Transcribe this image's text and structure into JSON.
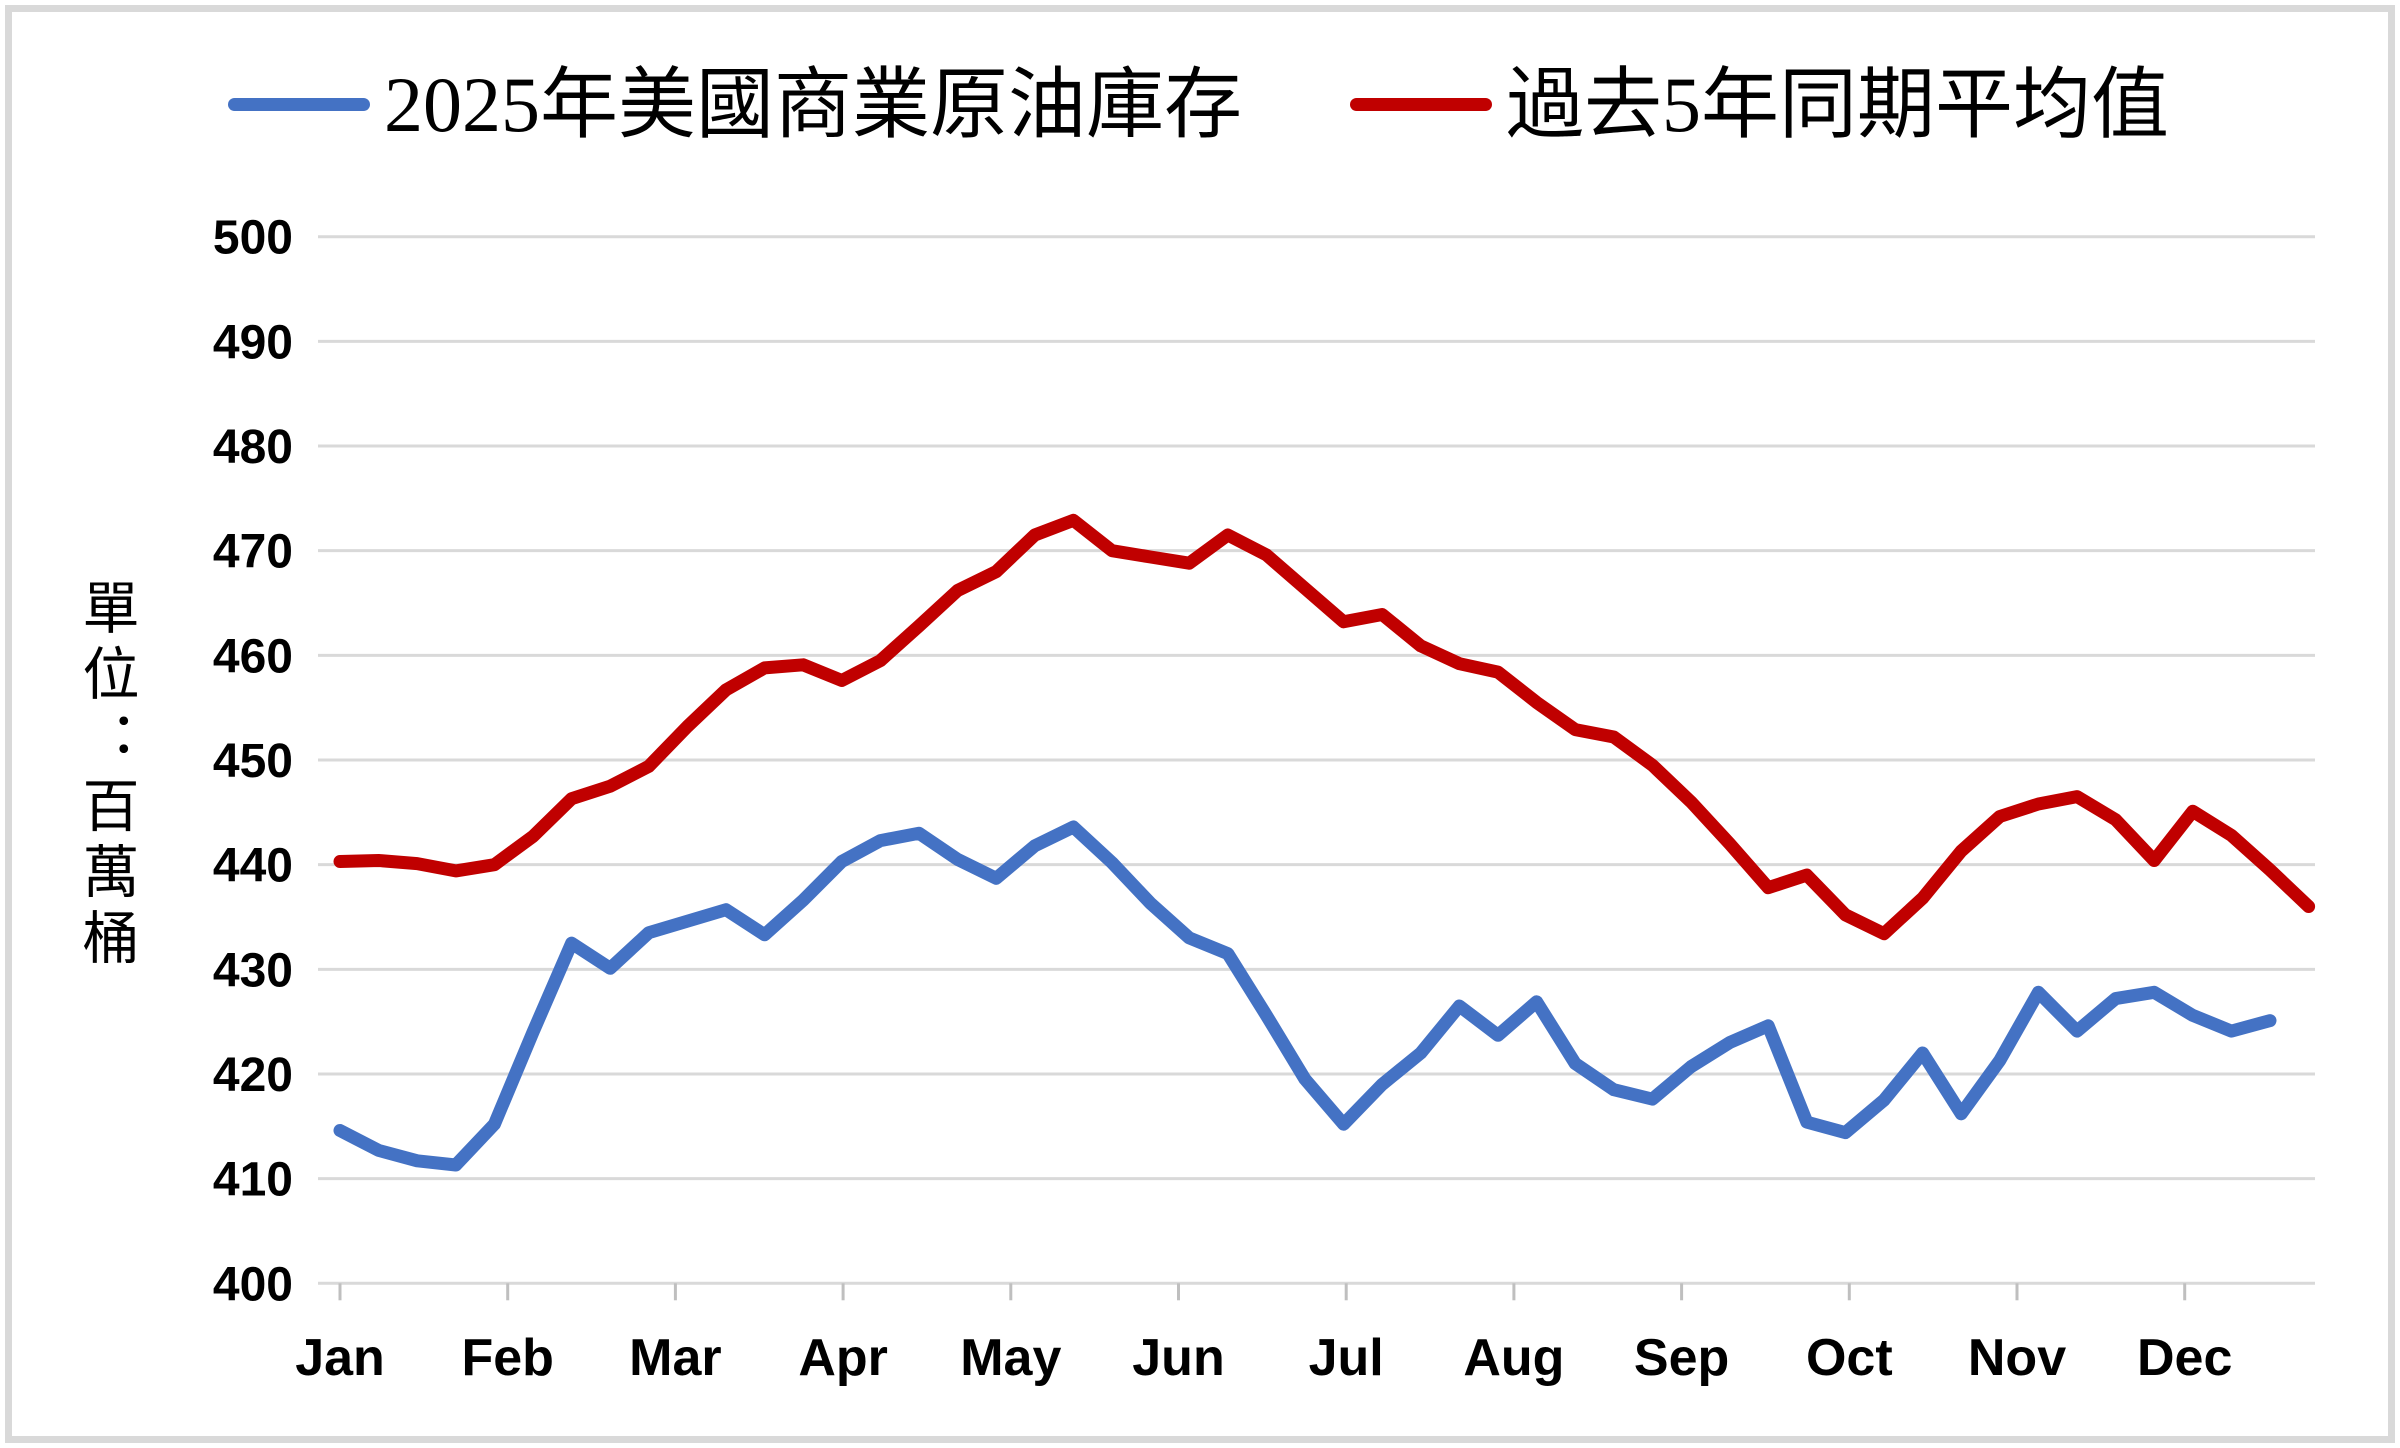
{
  "legend": {
    "items": [
      {
        "label": "2025年美國商業原油庫存",
        "color": "#4472C4"
      },
      {
        "label": "過去5年同期平均值",
        "color": "#C00000"
      }
    ]
  },
  "y_axis": {
    "unit_label": "單位：百萬桶",
    "tick_labels": [
      "500",
      "490",
      "480",
      "470",
      "460",
      "450",
      "440",
      "430",
      "420",
      "410",
      "400"
    ]
  },
  "x_axis": {
    "month_labels": [
      "Jan",
      "Feb",
      "Mar",
      "Apr",
      "May",
      "Jun",
      "Jul",
      "Aug",
      "Sep",
      "Oct",
      "Nov",
      "Dec"
    ]
  },
  "chart_data": {
    "type": "line",
    "title": "",
    "x_unit": "weekly data, January through December",
    "ylabel": "單位：百萬桶",
    "ylim": [
      400,
      500
    ],
    "y_tick_step": 10,
    "grid": true,
    "legend_position": "top",
    "x_tick_labels": [
      "Jan",
      "Feb",
      "Mar",
      "Apr",
      "May",
      "Jun",
      "Jul",
      "Aug",
      "Sep",
      "Oct",
      "Nov",
      "Dec"
    ],
    "series": [
      {
        "name": "2025年美國商業原油庫存",
        "color": "#4472C4",
        "values": [
          414.6,
          412.7,
          411.7,
          411.3,
          415.2,
          424.0,
          432.5,
          430.1,
          433.5,
          434.6,
          435.7,
          433.3,
          436.6,
          440.3,
          442.3,
          443.0,
          440.5,
          438.7,
          441.8,
          443.6,
          440.2,
          436.3,
          433.0,
          431.5,
          425.6,
          419.5,
          415.2,
          419.0,
          422.0,
          426.5,
          423.7,
          426.9,
          421.0,
          418.5,
          417.6,
          420.7,
          423.0,
          424.6,
          415.4,
          414.4,
          417.5,
          422.0,
          416.2,
          421.3,
          427.8,
          424.1,
          427.2,
          427.8,
          425.6,
          424.1,
          425.1
        ]
      },
      {
        "name": "過去5年同期平均值",
        "color": "#C00000",
        "values": [
          440.3,
          440.4,
          440.1,
          439.4,
          440.0,
          442.7,
          446.3,
          447.5,
          449.4,
          453.2,
          456.7,
          458.8,
          459.1,
          457.6,
          459.5,
          462.8,
          466.2,
          468.0,
          471.5,
          472.9,
          470.0,
          469.4,
          468.8,
          471.5,
          469.6,
          466.4,
          463.2,
          463.9,
          460.9,
          459.2,
          458.4,
          455.5,
          452.9,
          452.2,
          449.5,
          446.0,
          442.0,
          437.8,
          439.0,
          435.2,
          433.4,
          436.8,
          441.3,
          444.6,
          445.8,
          446.5,
          444.3,
          440.4,
          445.1,
          442.8,
          439.5,
          436.0
        ]
      }
    ]
  },
  "style": {
    "background": "#FFFFFF",
    "grid_color": "#D9D9D9",
    "tick_color": "#BFBFBF",
    "border_color": "#D9D9D9",
    "text_color": "#000000"
  }
}
